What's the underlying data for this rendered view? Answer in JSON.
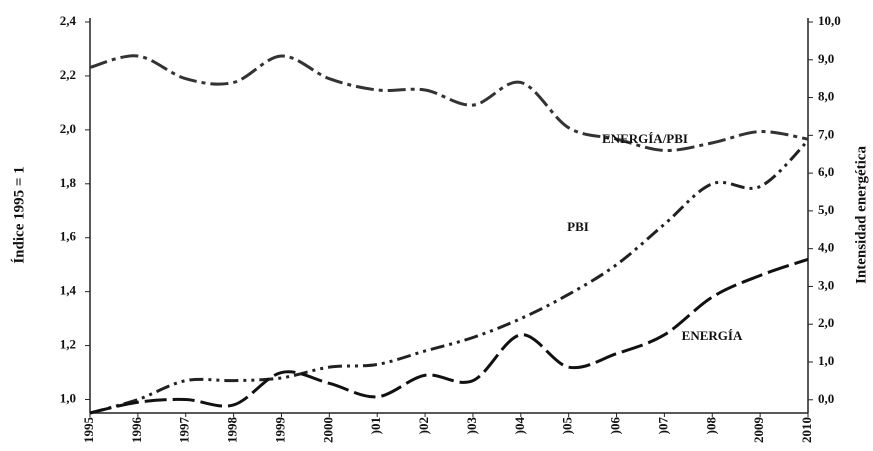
{
  "chart_data": {
    "type": "line",
    "y_label": "Índice 1995 = 1",
    "y2_label": "Intensidad energética",
    "categories": [
      "1995",
      "1996",
      "1997",
      "1998",
      "1999",
      "2000",
      ")01",
      ")02",
      ")03",
      ")04",
      ")05",
      ")06",
      ")07",
      ")08",
      "2009",
      "2010"
    ],
    "ylim": [
      0.95,
      2.4
    ],
    "yticks": [
      {
        "value": 1.0,
        "label": "1,0"
      },
      {
        "value": 1.2,
        "label": "1,2"
      },
      {
        "value": 1.4,
        "label": "1,4"
      },
      {
        "value": 1.6,
        "label": "1,6"
      },
      {
        "value": 1.8,
        "label": "1,8"
      },
      {
        "value": 2.0,
        "label": "2,0"
      },
      {
        "value": 2.2,
        "label": "2,2"
      },
      {
        "value": 2.4,
        "label": "2,4"
      }
    ],
    "y2lim": [
      -0.35,
      10
    ],
    "y2ticks": [
      {
        "value": 0,
        "label": "0,0"
      },
      {
        "value": 1,
        "label": "1,0"
      },
      {
        "value": 2,
        "label": "2,0"
      },
      {
        "value": 3,
        "label": "3,0"
      },
      {
        "value": 4,
        "label": "4,0"
      },
      {
        "value": 5,
        "label": "5,0"
      },
      {
        "value": 6,
        "label": "6,0"
      },
      {
        "value": 7,
        "label": "7,0"
      },
      {
        "value": 8,
        "label": "8,0"
      },
      {
        "value": 9,
        "label": "9,0"
      },
      {
        "value": 10,
        "label": "10,0"
      }
    ],
    "series": [
      {
        "name": "ENERGÍA/PBI",
        "color": "#333333",
        "axis": "y2",
        "values": [
          8.8,
          9.1,
          8.5,
          8.4,
          9.1,
          8.5,
          8.2,
          8.2,
          7.8,
          8.4,
          7.2,
          6.9,
          6.6,
          6.8,
          7.1,
          6.9
        ]
      },
      {
        "name": "PBI",
        "color": "#222222",
        "values": [
          0.95,
          1.0,
          1.07,
          1.07,
          1.08,
          1.12,
          1.13,
          1.18,
          1.23,
          1.3,
          1.39,
          1.5,
          1.65,
          1.8,
          1.79,
          1.96
        ]
      },
      {
        "name": "ENERGÍA",
        "color": "#111111",
        "values": [
          0.95,
          0.99,
          1.0,
          0.98,
          1.1,
          1.06,
          1.01,
          1.09,
          1.07,
          1.24,
          1.12,
          1.17,
          1.24,
          1.38,
          1.46,
          1.52
        ]
      }
    ]
  }
}
